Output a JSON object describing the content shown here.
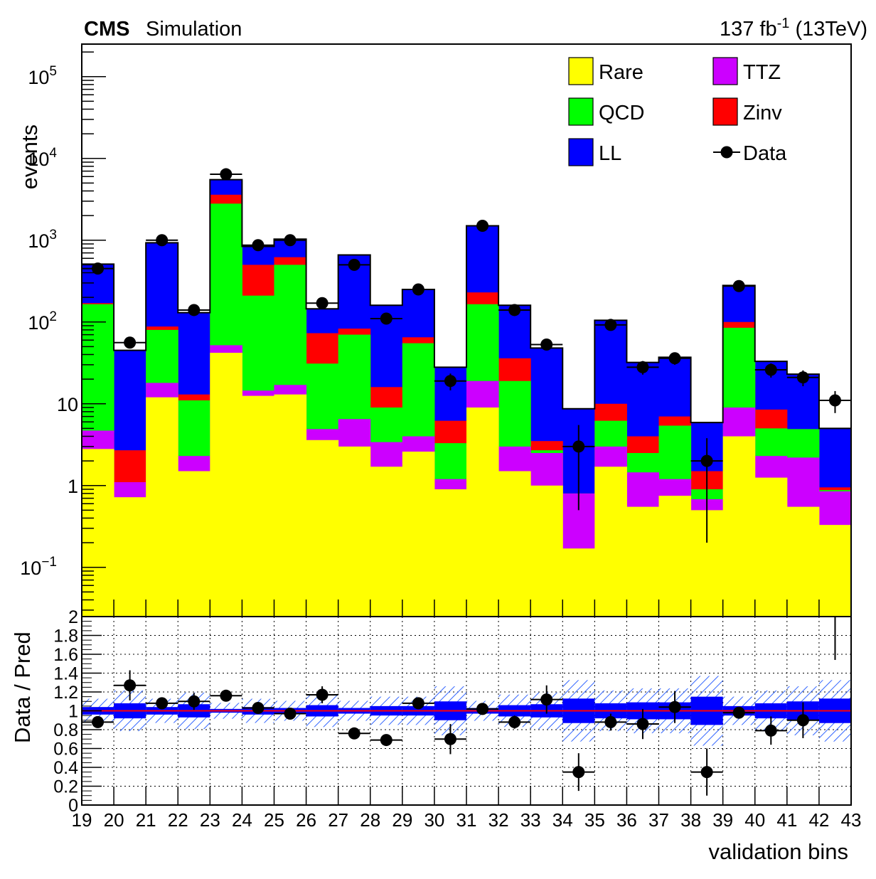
{
  "header": {
    "experiment": "CMS",
    "label": "Simulation",
    "lumi_value": "137 fb",
    "lumi_exp": "-1",
    "energy": " (13TeV)"
  },
  "legend": {
    "items": [
      {
        "name": "Rare",
        "color": "#ffff00",
        "kind": "box"
      },
      {
        "name": "TTZ",
        "color": "#cc00ff",
        "kind": "box"
      },
      {
        "name": "QCD",
        "color": "#00ff00",
        "kind": "box"
      },
      {
        "name": "Zinv",
        "color": "#ff0000",
        "kind": "box"
      },
      {
        "name": "LL",
        "color": "#0000ff",
        "kind": "box"
      },
      {
        "name": "Data",
        "color": "#000000",
        "kind": "marker"
      }
    ]
  },
  "chart_data": [
    {
      "type": "bar",
      "stacked": true,
      "yscale": "log",
      "ylabel": "events",
      "ylim": [
        0.025,
        250000
      ],
      "xlim": [
        19,
        43
      ],
      "bins": [
        19,
        20,
        21,
        22,
        23,
        24,
        25,
        26,
        27,
        28,
        29,
        30,
        31,
        32,
        33,
        34,
        35,
        36,
        37,
        38,
        39,
        40,
        41,
        42
      ],
      "cumulative_tops": {
        "Rare": [
          2.8,
          0.72,
          12,
          1.5,
          42,
          12.5,
          13,
          3.6,
          3.0,
          1.7,
          2.6,
          0.9,
          9,
          1.5,
          1.0,
          0.17,
          1.7,
          0.55,
          0.75,
          0.5,
          4.0,
          1.25,
          0.55,
          0.33
        ],
        "TTZ": [
          4.7,
          1.1,
          18,
          2.3,
          52,
          14.5,
          17,
          4.9,
          6.5,
          3.4,
          4.0,
          1.2,
          19,
          3.0,
          2.5,
          0.8,
          3.0,
          1.45,
          1.2,
          0.68,
          9.0,
          2.3,
          2.2,
          0.85
        ],
        "QCD": [
          165,
          1.1,
          80,
          11,
          2800,
          210,
          500,
          31,
          70,
          9,
          55,
          3.3,
          165,
          19,
          2.7,
          0.8,
          6.2,
          2.5,
          5.4,
          0.9,
          85,
          5.0,
          4.9,
          0.88
        ],
        "Zinv": [
          170,
          2.7,
          88,
          13,
          3600,
          500,
          620,
          73,
          83,
          16,
          65,
          6.2,
          230,
          36,
          3.5,
          0.8,
          10,
          4.0,
          7.0,
          1.5,
          100,
          8.5,
          4.9,
          0.95
        ],
        "LL": [
          510,
          45,
          930,
          130,
          5500,
          840,
          1030,
          145,
          660,
          160,
          250,
          28,
          1500,
          160,
          48,
          8.7,
          105,
          32,
          37,
          5.9,
          280,
          33,
          23,
          5.0
        ]
      },
      "data_points": [
        {
          "bin": 19,
          "value": 450,
          "err": 21
        },
        {
          "bin": 20,
          "value": 56,
          "err": 7.5
        },
        {
          "bin": 21,
          "value": 1000,
          "err": 32
        },
        {
          "bin": 22,
          "value": 140,
          "err": 12
        },
        {
          "bin": 23,
          "value": 6400,
          "err": 80
        },
        {
          "bin": 24,
          "value": 870,
          "err": 30
        },
        {
          "bin": 25,
          "value": 1000,
          "err": 32
        },
        {
          "bin": 26,
          "value": 170,
          "err": 13
        },
        {
          "bin": 27,
          "value": 500,
          "err": 22
        },
        {
          "bin": 28,
          "value": 110,
          "err": 10.5
        },
        {
          "bin": 29,
          "value": 250,
          "err": 16
        },
        {
          "bin": 30,
          "value": 19,
          "err": 4.4
        },
        {
          "bin": 31,
          "value": 1500,
          "err": 39
        },
        {
          "bin": 32,
          "value": 140,
          "err": 12
        },
        {
          "bin": 33,
          "value": 53,
          "err": 7.3
        },
        {
          "bin": 34,
          "value": 3,
          "err": 2.5
        },
        {
          "bin": 35,
          "value": 92,
          "err": 9.6
        },
        {
          "bin": 36,
          "value": 28,
          "err": 5.3
        },
        {
          "bin": 37,
          "value": 36,
          "err": 6
        },
        {
          "bin": 38,
          "value": 2,
          "err": 1.8
        },
        {
          "bin": 39,
          "value": 275,
          "err": 17
        },
        {
          "bin": 40,
          "value": 26,
          "err": 5.1
        },
        {
          "bin": 41,
          "value": 21,
          "err": 4.6
        },
        {
          "bin": 42,
          "value": 11,
          "err": 3.3
        }
      ],
      "yticks": [
        {
          "base": "10",
          "exp": "−1",
          "value": 0.1
        },
        {
          "base": "1",
          "exp": "",
          "value": 1
        },
        {
          "base": "10",
          "exp": "",
          "value": 10
        },
        {
          "base": "10",
          "exp": "2",
          "value": 100
        },
        {
          "base": "10",
          "exp": "3",
          "value": 1000
        },
        {
          "base": "10",
          "exp": "4",
          "value": 10000
        },
        {
          "base": "10",
          "exp": "5",
          "value": 100000
        }
      ]
    },
    {
      "type": "scatter",
      "ylabel": "Data / Pred",
      "xlabel": "validation bins",
      "xlim": [
        19,
        43
      ],
      "ylim": [
        0,
        2
      ],
      "yticks": [
        "0",
        "0.2",
        "0.4",
        "0.6",
        "0.8",
        "1",
        "1.2",
        "1.4",
        "1.6",
        "1.8",
        "2"
      ],
      "xticks": [
        "19",
        "20",
        "21",
        "22",
        "23",
        "24",
        "25",
        "26",
        "27",
        "28",
        "29",
        "30",
        "31",
        "32",
        "33",
        "34",
        "35",
        "36",
        "37",
        "38",
        "39",
        "40",
        "41",
        "42",
        "43"
      ],
      "reference_line": 1,
      "ratios": [
        {
          "bin": 19,
          "value": 0.88,
          "err": 0.04
        },
        {
          "bin": 20,
          "value": 1.27,
          "err": 0.16
        },
        {
          "bin": 21,
          "value": 1.08,
          "err": 0.04
        },
        {
          "bin": 22,
          "value": 1.1,
          "err": 0.09
        },
        {
          "bin": 23,
          "value": 1.16,
          "err": 0.02
        },
        {
          "bin": 24,
          "value": 1.03,
          "err": 0.04
        },
        {
          "bin": 25,
          "value": 0.97,
          "err": 0.03
        },
        {
          "bin": 26,
          "value": 1.17,
          "err": 0.09
        },
        {
          "bin": 27,
          "value": 0.76,
          "err": 0.03
        },
        {
          "bin": 28,
          "value": 0.69,
          "err": 0.02
        },
        {
          "bin": 29,
          "value": 1.08,
          "err": 0.06
        },
        {
          "bin": 30,
          "value": 0.7,
          "err": 0.16
        },
        {
          "bin": 31,
          "value": 1.02,
          "err": 0.03
        },
        {
          "bin": 32,
          "value": 0.88,
          "err": 0.07
        },
        {
          "bin": 33,
          "value": 1.12,
          "err": 0.15
        },
        {
          "bin": 34,
          "value": 0.35,
          "err": 0.2
        },
        {
          "bin": 35,
          "value": 0.88,
          "err": 0.09
        },
        {
          "bin": 36,
          "value": 0.86,
          "err": 0.16
        },
        {
          "bin": 37,
          "value": 1.04,
          "err": 0.17
        },
        {
          "bin": 38,
          "value": 0.35,
          "err": 0.25
        },
        {
          "bin": 39,
          "value": 0.98,
          "err": 0.06
        },
        {
          "bin": 40,
          "value": 0.79,
          "err": 0.15
        },
        {
          "bin": 41,
          "value": 0.9,
          "err": 0.19
        },
        {
          "bin": 42,
          "value": 2.2,
          "err": 0.66
        }
      ],
      "pred_uncertainty": [
        0.04,
        0.08,
        0.04,
        0.07,
        0.02,
        0.04,
        0.03,
        0.06,
        0.03,
        0.05,
        0.05,
        0.1,
        0.03,
        0.06,
        0.07,
        0.13,
        0.08,
        0.09,
        0.09,
        0.15,
        0.05,
        0.08,
        0.1,
        0.13
      ],
      "colors": {
        "uncert_fill": "#0000ff",
        "uncert_hatch": "#3366ff",
        "ref_line": "#ff0000"
      }
    }
  ]
}
